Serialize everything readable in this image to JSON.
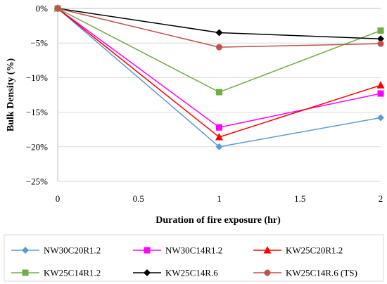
{
  "chart_data": {
    "type": "line",
    "xlabel": "Duration of fire exposure (hr)",
    "ylabel": "Bulk Density (%)",
    "xlim": [
      0,
      2
    ],
    "ylim": [
      -25,
      0
    ],
    "x_ticks": [
      0,
      0.5,
      1,
      1.5,
      2
    ],
    "x_tick_labels": [
      "0",
      "0.5",
      "1",
      "1.5",
      "2"
    ],
    "y_ticks": [
      0,
      -5,
      -10,
      -15,
      -20,
      -25
    ],
    "y_tick_labels": [
      "0%",
      "−5%",
      "−10%",
      "−15%",
      "−20%",
      "−25%"
    ],
    "grid": "horizontal",
    "legend_position": "bottom",
    "x": [
      0,
      1,
      2
    ],
    "series": [
      {
        "name": "NW30C20R1.2",
        "values": [
          0,
          -20.0,
          -15.8
        ],
        "color": "#5B9BD5",
        "marker": "diamond"
      },
      {
        "name": "NW30C14R1.2",
        "values": [
          0,
          -17.2,
          -12.3
        ],
        "color": "#FF00FF",
        "marker": "square"
      },
      {
        "name": "KW25C20R1.2",
        "values": [
          0,
          -18.6,
          -11.1
        ],
        "color": "#FF0000",
        "marker": "triangle"
      },
      {
        "name": "KW25C14R1.2",
        "values": [
          0,
          -12.1,
          -3.2
        ],
        "color": "#70AD47",
        "marker": "square"
      },
      {
        "name": "KW25C14R.6",
        "values": [
          0,
          -3.5,
          -4.4
        ],
        "color": "#000000",
        "marker": "diamond"
      },
      {
        "name": "KW25C14R.6 (TS)",
        "values": [
          0,
          -5.6,
          -5.1
        ],
        "color": "#C0504D",
        "marker": "circle"
      }
    ]
  }
}
